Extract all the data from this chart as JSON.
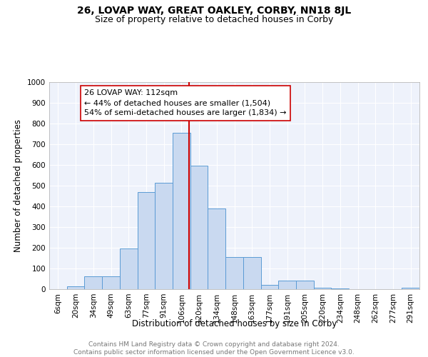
{
  "title": "26, LOVAP WAY, GREAT OAKLEY, CORBY, NN18 8JL",
  "subtitle": "Size of property relative to detached houses in Corby",
  "xlabel": "Distribution of detached houses by size in Corby",
  "ylabel": "Number of detached properties",
  "categories": [
    "6sqm",
    "20sqm",
    "34sqm",
    "49sqm",
    "63sqm",
    "77sqm",
    "91sqm",
    "106sqm",
    "120sqm",
    "134sqm",
    "148sqm",
    "163sqm",
    "177sqm",
    "191sqm",
    "205sqm",
    "220sqm",
    "234sqm",
    "248sqm",
    "262sqm",
    "277sqm",
    "291sqm"
  ],
  "values": [
    0,
    15,
    62,
    62,
    195,
    470,
    515,
    755,
    595,
    390,
    155,
    155,
    20,
    40,
    43,
    8,
    5,
    0,
    0,
    0,
    8
  ],
  "bar_color": "#c9d9f0",
  "bar_edge_color": "#5b9bd5",
  "vline_color": "#cc0000",
  "annotation_line1": "26 LOVAP WAY: 112sqm",
  "annotation_line2": "← 44% of detached houses are smaller (1,504)",
  "annotation_line3": "54% of semi-detached houses are larger (1,834) →",
  "annotation_box_color": "#ffffff",
  "annotation_box_edge": "#cc0000",
  "ylim": [
    0,
    1000
  ],
  "yticks": [
    0,
    100,
    200,
    300,
    400,
    500,
    600,
    700,
    800,
    900,
    1000
  ],
  "footer_text": "Contains HM Land Registry data © Crown copyright and database right 2024.\nContains public sector information licensed under the Open Government Licence v3.0.",
  "background_color": "#eef2fb",
  "grid_color": "#ffffff",
  "title_fontsize": 10,
  "subtitle_fontsize": 9,
  "axis_label_fontsize": 8.5,
  "tick_fontsize": 7.5,
  "annotation_fontsize": 8,
  "footer_fontsize": 6.5
}
